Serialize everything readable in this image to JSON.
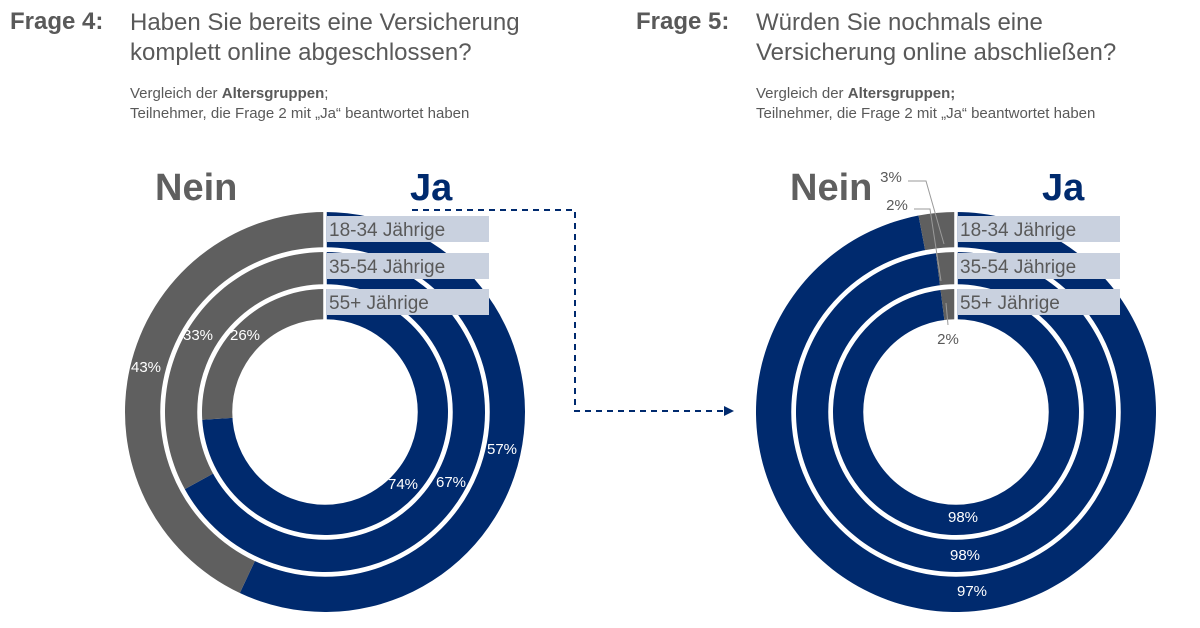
{
  "questions": [
    {
      "label": "Frage 4:",
      "title_line1": "Haben Sie bereits eine Versicherung",
      "title_line2": "komplett online abgeschlossen?",
      "sub_prefix": "Vergleich der ",
      "sub_bold": "Altersgruppen",
      "sub_suffix": ";",
      "sub_line2": "Teilnehmer, die Frage 2 mit „Ja“ beantwortet haben"
    },
    {
      "label": "Frage 5:",
      "title_line1": "Würden Sie nochmals eine",
      "title_line2": "Versicherung online abschließen?",
      "sub_prefix": "Vergleich der ",
      "sub_bold": "Altersgruppen;",
      "sub_suffix": "",
      "sub_line2": "Teilnehmer, die Frage 2 mit „Ja“ beantwortet haben"
    }
  ],
  "colors": {
    "ja": "#002a6e",
    "nein": "#5f5f5f",
    "label_box": "#c9d1df",
    "text": "#595959"
  },
  "chart_data": [
    {
      "type": "pie",
      "title": "Haben Sie bereits eine Versicherung komplett online abgeschlossen?",
      "legend": [
        "Nein",
        "Ja"
      ],
      "categories": [
        "18-34 Jährige",
        "35-54 Jährige",
        "55+ Jährige"
      ],
      "series": [
        {
          "name": "Ja",
          "values": [
            57,
            67,
            74
          ]
        },
        {
          "name": "Nein",
          "values": [
            43,
            33,
            26
          ]
        }
      ],
      "value_labels": {
        "ja": [
          "57%",
          "67%",
          "74%"
        ],
        "nein": [
          "43%",
          "33%",
          "26%"
        ]
      }
    },
    {
      "type": "pie",
      "title": "Würden Sie nochmals eine Versicherung online abschließen?",
      "legend": [
        "Nein",
        "Ja"
      ],
      "categories": [
        "18-34 Jährige",
        "35-54 Jährige",
        "55+ Jährige"
      ],
      "series": [
        {
          "name": "Ja",
          "values": [
            97,
            98,
            98
          ]
        },
        {
          "name": "Nein",
          "values": [
            3,
            2,
            2
          ]
        }
      ],
      "value_labels": {
        "ja": [
          "97%",
          "98%",
          "98%"
        ],
        "nein": [
          "3%",
          "2%",
          "2%"
        ]
      }
    }
  ]
}
